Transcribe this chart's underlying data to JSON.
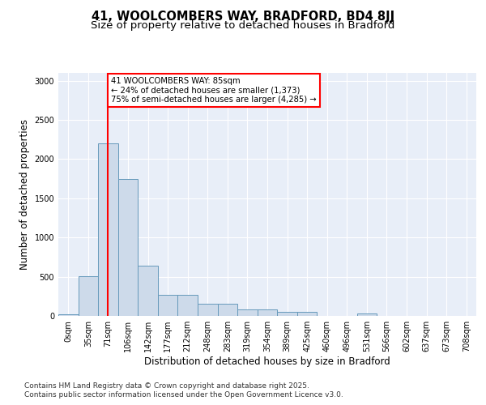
{
  "title1": "41, WOOLCOMBERS WAY, BRADFORD, BD4 8JJ",
  "title2": "Size of property relative to detached houses in Bradford",
  "xlabel": "Distribution of detached houses by size in Bradford",
  "ylabel": "Number of detached properties",
  "bar_labels": [
    "0sqm",
    "35sqm",
    "71sqm",
    "106sqm",
    "142sqm",
    "177sqm",
    "212sqm",
    "248sqm",
    "283sqm",
    "319sqm",
    "354sqm",
    "389sqm",
    "425sqm",
    "460sqm",
    "496sqm",
    "531sqm",
    "566sqm",
    "602sqm",
    "637sqm",
    "673sqm",
    "708sqm"
  ],
  "bar_values": [
    20,
    510,
    2200,
    1750,
    640,
    270,
    270,
    150,
    150,
    80,
    80,
    50,
    50,
    5,
    5,
    30,
    5,
    5,
    5,
    5,
    5
  ],
  "bar_color": "#cddaea",
  "bar_edge_color": "#6699bb",
  "vline_x": 2,
  "vline_color": "red",
  "annotation_text": "41 WOOLCOMBERS WAY: 85sqm\n← 24% of detached houses are smaller (1,373)\n75% of semi-detached houses are larger (4,285) →",
  "annotation_box_color": "white",
  "annotation_box_edge_color": "red",
  "ylim": [
    0,
    3100
  ],
  "yticks": [
    0,
    500,
    1000,
    1500,
    2000,
    2500,
    3000
  ],
  "footer1": "Contains HM Land Registry data © Crown copyright and database right 2025.",
  "footer2": "Contains public sector information licensed under the Open Government Licence v3.0.",
  "bg_color": "#ffffff",
  "plot_bg_color": "#e8eef8",
  "grid_color": "#ffffff",
  "title_fontsize": 10.5,
  "subtitle_fontsize": 9.5,
  "tick_fontsize": 7,
  "label_fontsize": 8.5,
  "footer_fontsize": 6.5
}
